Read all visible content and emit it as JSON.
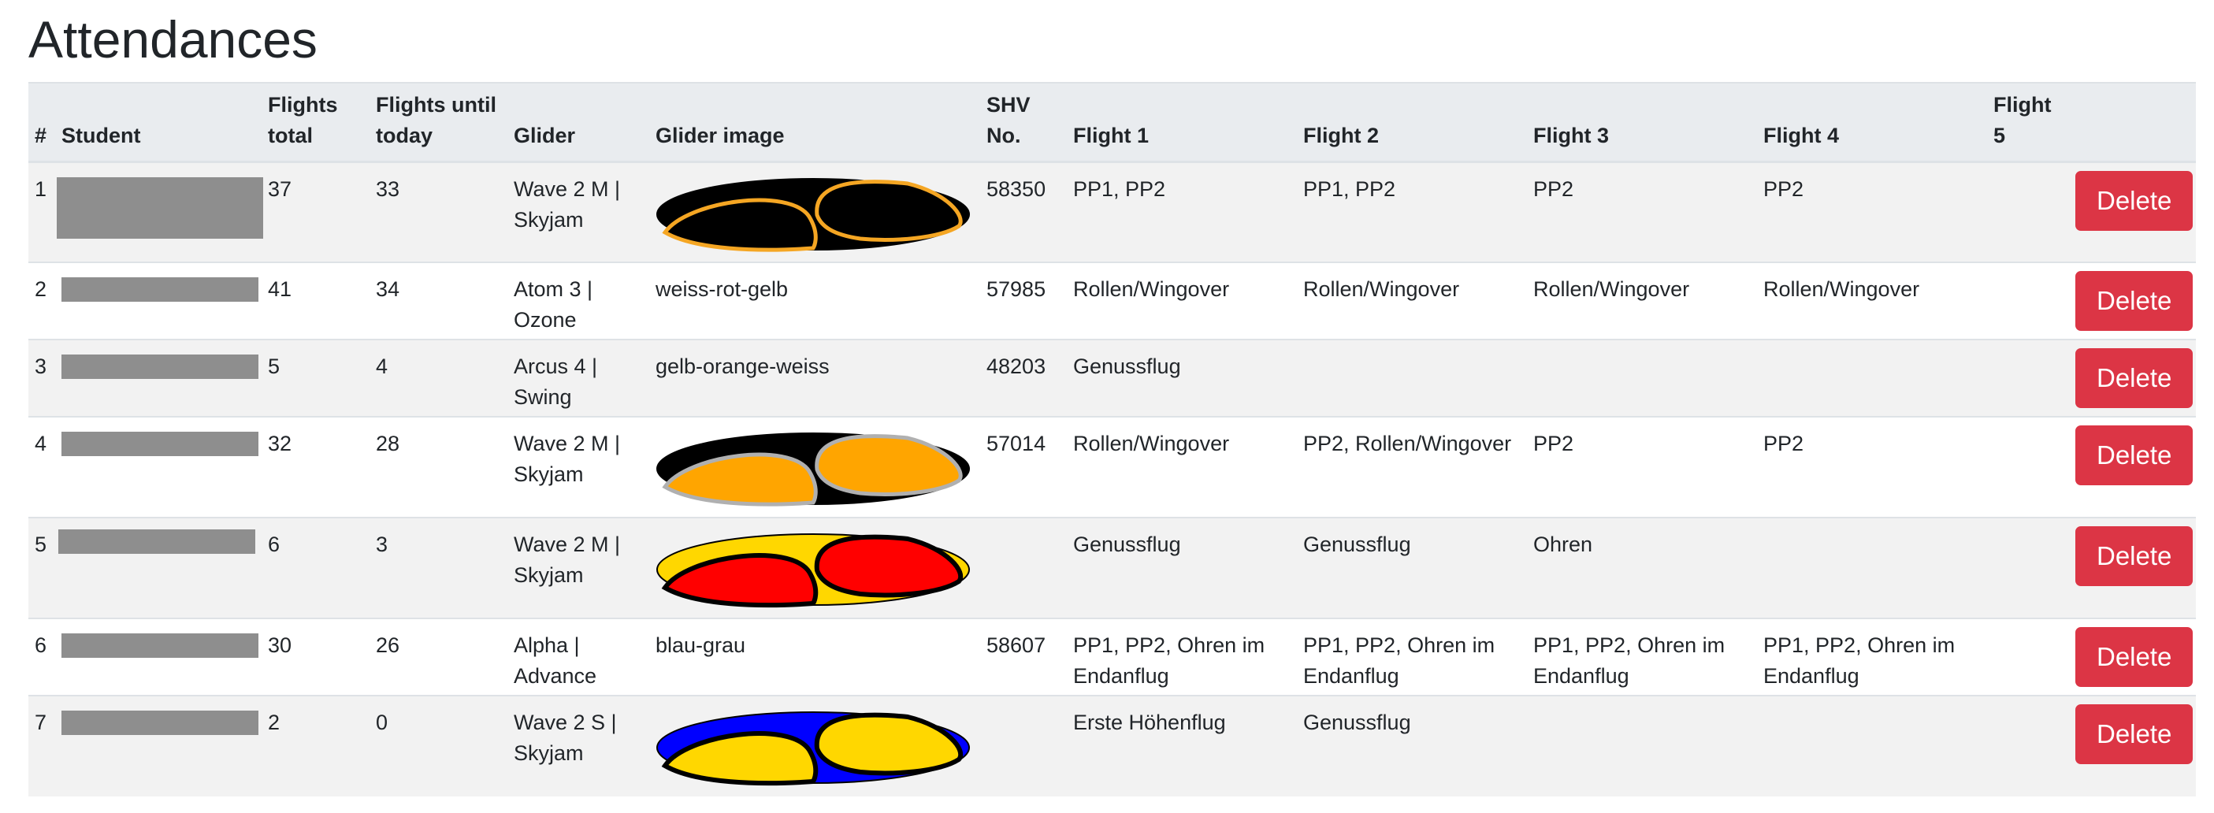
{
  "page": {
    "title": "Attendances"
  },
  "columns": {
    "num": "#",
    "student": "Student",
    "flights_total": "Flights total",
    "flights_until_today": "Flights until today",
    "glider": "Glider",
    "glider_image": "Glider image",
    "shv_no": "SHV No.",
    "flight1": "Flight 1",
    "flight2": "Flight 2",
    "flight3": "Flight 3",
    "flight4": "Flight 4",
    "flight5": "Flight 5"
  },
  "rows": [
    {
      "num": "1",
      "flights_total": "37",
      "flights_until_today": "33",
      "glider": "Wave 2 M | Skyjam",
      "glider_image_text": "",
      "glider_image": {
        "base": "#000000",
        "cell": "#000000",
        "outline": "#f5a623"
      },
      "shv": "58350",
      "flight1": "PP1, PP2",
      "flight2": "PP1, PP2",
      "flight3": "PP2",
      "flight4": "PP2",
      "flight5": "",
      "delete_label": "Delete"
    },
    {
      "num": "2",
      "flights_total": "41",
      "flights_until_today": "34",
      "glider": "Atom 3 | Ozone",
      "glider_image_text": "weiss-rot-gelb",
      "shv": "57985",
      "flight1": "Rollen/Wingover",
      "flight2": "Rollen/Wingover",
      "flight3": "Rollen/Wingover",
      "flight4": "Rollen/Wingover",
      "flight5": "",
      "delete_label": "Delete"
    },
    {
      "num": "3",
      "flights_total": "5",
      "flights_until_today": "4",
      "glider": "Arcus 4 | Swing",
      "glider_image_text": "gelb-orange-weiss",
      "shv": "48203",
      "flight1": "Genussflug",
      "flight2": "",
      "flight3": "",
      "flight4": "",
      "flight5": "",
      "delete_label": "Delete"
    },
    {
      "num": "4",
      "flights_total": "32",
      "flights_until_today": "28",
      "glider": "Wave 2 M | Skyjam",
      "glider_image_text": "",
      "glider_image": {
        "base": "#000000",
        "cell": "#ffa500",
        "outline": "#b0b0b0"
      },
      "shv": "57014",
      "flight1": "Rollen/Wingover",
      "flight2": "PP2, Rollen/Wingover",
      "flight3": "PP2",
      "flight4": "PP2",
      "flight5": "",
      "delete_label": "Delete"
    },
    {
      "num": "5",
      "flights_total": "6",
      "flights_until_today": "3",
      "glider": "Wave 2 M | Skyjam",
      "glider_image_text": "",
      "glider_image": {
        "base": "#ffd700",
        "cell": "#ff0000",
        "outline": "#000000"
      },
      "shv": "",
      "flight1": "Genussflug",
      "flight2": "Genussflug",
      "flight3": "Ohren",
      "flight4": "",
      "flight5": "",
      "delete_label": "Delete"
    },
    {
      "num": "6",
      "flights_total": "30",
      "flights_until_today": "26",
      "glider": "Alpha | Advance",
      "glider_image_text": "blau-grau",
      "shv": "58607",
      "flight1": "PP1, PP2, Ohren im Endanflug",
      "flight2": "PP1, PP2, Ohren im Endanflug",
      "flight3": "PP1, PP2, Ohren im Endanflug",
      "flight4": "PP1, PP2, Ohren im Endanflug",
      "flight5": "",
      "delete_label": "Delete"
    },
    {
      "num": "7",
      "flights_total": "2",
      "flights_until_today": "0",
      "glider": "Wave 2 S | Skyjam",
      "glider_image_text": "",
      "glider_image": {
        "base": "#0000ff",
        "cell": "#ffd700",
        "outline": "#000000"
      },
      "shv": "",
      "flight1": "Erste Höhenflug",
      "flight2": "Genussflug",
      "flight3": "",
      "flight4": "",
      "flight5": "",
      "delete_label": "Delete"
    }
  ]
}
